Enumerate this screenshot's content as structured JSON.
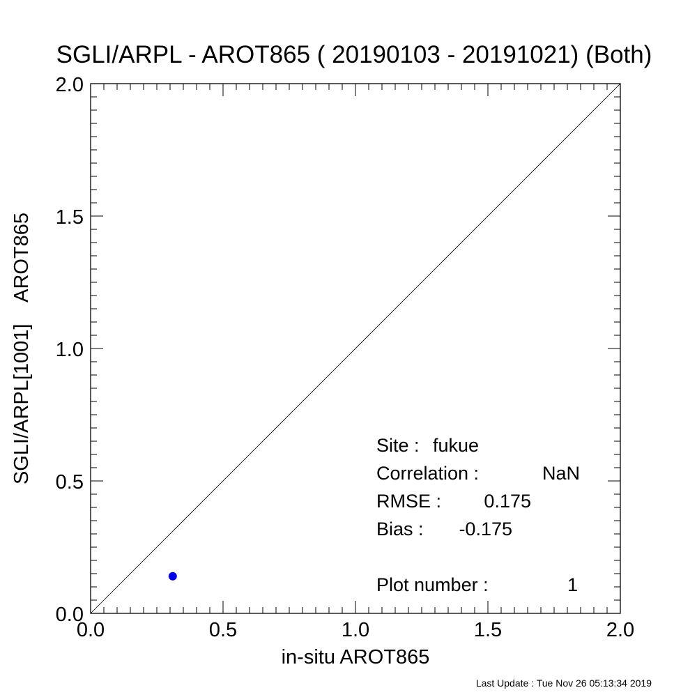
{
  "chart_data": {
    "type": "scatter",
    "title": "SGLI/ARPL - AROT865 ( 20190103 - 20191021) (Both)",
    "xlabel": "in-situ AROT865",
    "ylabel": "SGLI/ARPL[1001]    AROT865",
    "xlim": [
      0.0,
      2.0
    ],
    "ylim": [
      0.0,
      2.0
    ],
    "x_ticks": [
      "0.0",
      "0.5",
      "1.0",
      "1.5",
      "2.0"
    ],
    "y_ticks": [
      "0.0",
      "0.5",
      "1.0",
      "1.5",
      "2.0"
    ],
    "reference_line": "1:1",
    "point_color": "#0000ee",
    "points": [
      {
        "x": 0.31,
        "y": 0.14
      }
    ],
    "grid": false
  },
  "stats": {
    "site_label": "Site :",
    "site_value": "fukue",
    "correlation_label": "Correlation :",
    "correlation_value": "NaN",
    "rmse_label": "RMSE :",
    "rmse_value": "0.175",
    "bias_label": "Bias :",
    "bias_value": "-0.175",
    "plot_number_label": "Plot number :",
    "plot_number_value": "1"
  },
  "footer": {
    "last_update": "Last Update : Tue Nov 26 05:13:34 2019"
  }
}
